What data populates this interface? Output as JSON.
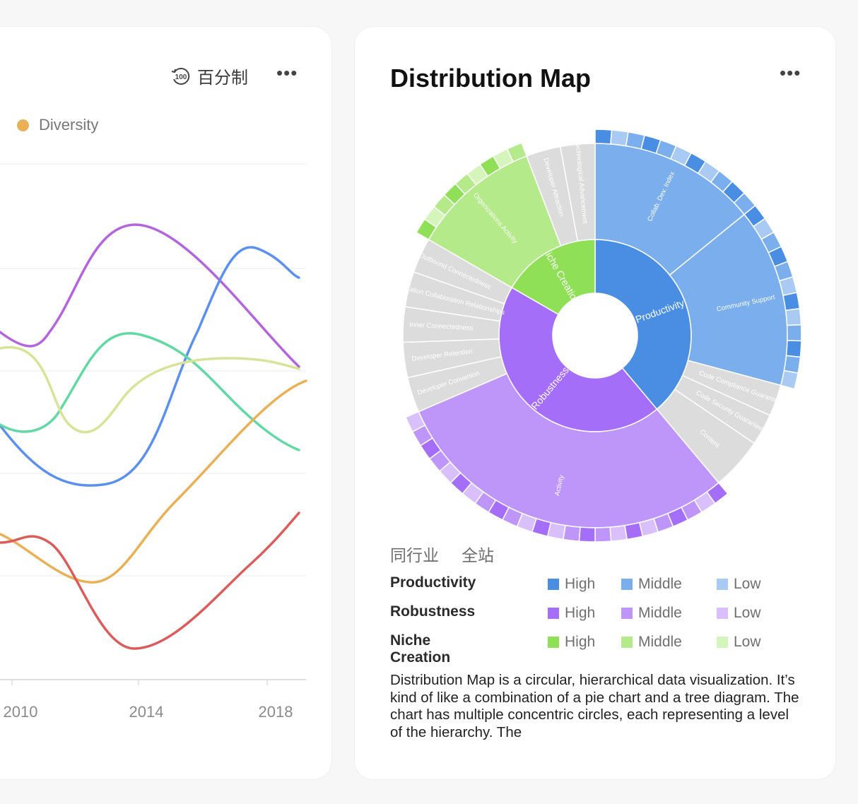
{
  "left_card": {
    "toggle_label": "百分制",
    "legend": [
      {
        "label": "Diversity",
        "color": "#eab055"
      }
    ],
    "x_ticks": [
      "2010",
      "2014",
      "2018"
    ],
    "lines": [
      {
        "color": "#b464dc"
      },
      {
        "color": "#5b8ff0"
      },
      {
        "color": "#62d9a4"
      },
      {
        "color": "#d9e398"
      },
      {
        "color": "#eab055"
      },
      {
        "color": "#dc5c5c"
      }
    ]
  },
  "right_card": {
    "title": "Distribution Map",
    "tabs": [
      "同行业",
      "全站"
    ],
    "legend_rows": [
      {
        "name": "Productivity",
        "levels": [
          "High",
          "Middle",
          "Low"
        ],
        "colors": [
          "#4a8ee4",
          "#7aaeec",
          "#a9cbf3"
        ]
      },
      {
        "name": "Robustness",
        "levels": [
          "High",
          "Middle",
          "Low"
        ],
        "colors": [
          "#a56ef8",
          "#be96fa",
          "#d9c0fc"
        ]
      },
      {
        "name": "Niche Creation",
        "levels": [
          "High",
          "Middle",
          "Low"
        ],
        "colors": [
          "#8fe056",
          "#b4ea8a",
          "#d6f5bd"
        ]
      }
    ],
    "description": "Distribution Map is a circular, hierarchical data visualization. It’s kind of like a combination of a pie chart and a tree diagram. The chart has multiple concentric circles, each representing a level of the hierarchy. The",
    "chart_labels": {
      "inner": [
        "Productivity",
        "Robustness",
        "Niche Creation"
      ],
      "middle": [
        "Collab. Dev. Index",
        "Community Support",
        "Code Compliance Guarantee",
        "Code Security Guarantee",
        "Content",
        "Activity",
        "Developer Convertion",
        "Developer Retention",
        "Inner Connectedness",
        "Organization Collaboration Relationships",
        "Outbound Connectedness",
        "Organizations Activity",
        "Developer Attraction",
        "Technological Advancement"
      ]
    }
  },
  "chart_data": {
    "type": "sunburst",
    "inner": [
      {
        "name": "Productivity",
        "value": 35
      },
      {
        "name": "Robustness",
        "value": 40
      },
      {
        "name": "Niche Creation",
        "value": 15
      }
    ],
    "middle": [
      {
        "parent": "Productivity",
        "name": "Collab. Dev. Index",
        "value": 16
      },
      {
        "parent": "Productivity",
        "name": "Community Support",
        "value": 17
      },
      {
        "parent": "Productivity",
        "name": "Code Compliance Guarantee",
        "value": 3
      },
      {
        "parent": "Productivity",
        "name": "Code Security Guarantee",
        "value": 3
      },
      {
        "parent": "Productivity",
        "name": "Content",
        "value": 5
      },
      {
        "parent": "Robustness",
        "name": "Activity",
        "value": 40
      },
      {
        "parent": "Robustness",
        "name": "Developer Convertion",
        "value": 4
      },
      {
        "parent": "Robustness",
        "name": "Developer Retention",
        "value": 4
      },
      {
        "parent": "Robustness",
        "name": "Inner Connectedness",
        "value": 4
      },
      {
        "parent": "Robustness",
        "name": "Organization Collaboration Relationships",
        "value": 4
      },
      {
        "parent": "Robustness",
        "name": "Outbound Connectedness",
        "value": 4
      },
      {
        "parent": "Niche Creation",
        "name": "Organizations Activity",
        "value": 15
      },
      {
        "parent": "Niche Creation",
        "name": "Developer Attraction",
        "value": 4
      },
      {
        "parent": "Niche Creation",
        "name": "Technological Advancement",
        "value": 4
      }
    ]
  }
}
